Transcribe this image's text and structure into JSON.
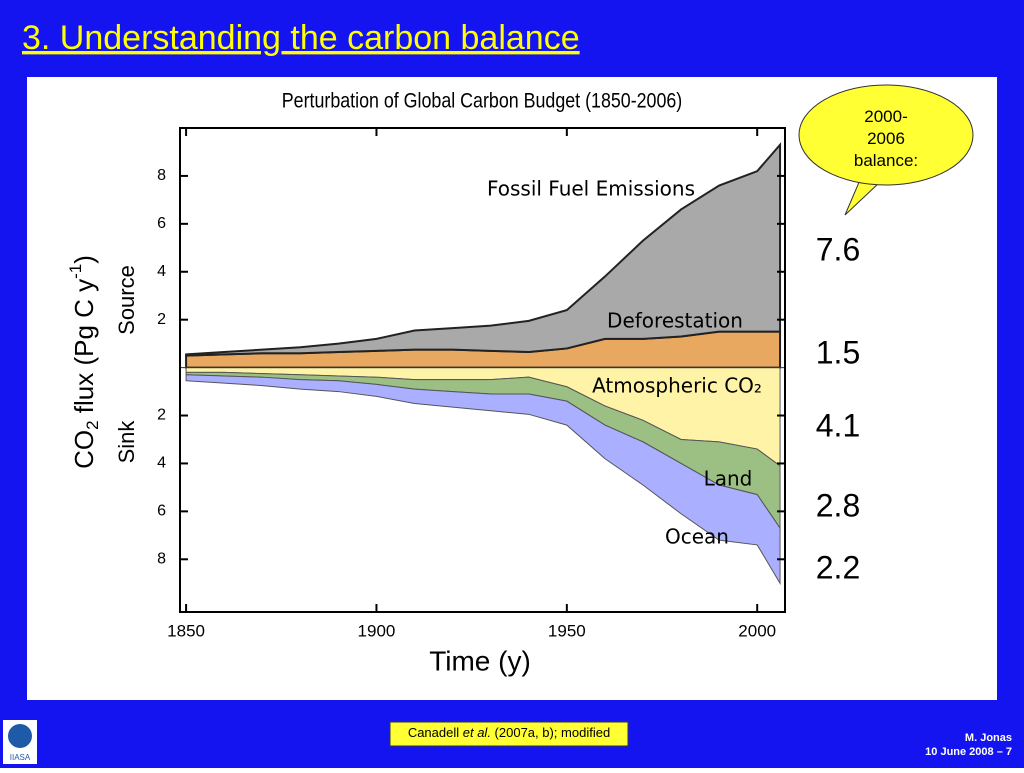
{
  "slide_title": "3. Understanding the carbon balance",
  "chart_data": {
    "type": "area",
    "title": "Perturbation of Global Carbon Budget (1850-2006)",
    "y_label": [
      "CO",
      "2",
      " flux (Pg C y",
      "-1",
      ")"
    ],
    "source_label": "Source",
    "sink_label": "Sink",
    "x_label": "Time (y)",
    "x": [
      1850,
      1860,
      1870,
      1880,
      1890,
      1900,
      1910,
      1920,
      1930,
      1940,
      1950,
      1960,
      1970,
      1980,
      1990,
      2000,
      2006
    ],
    "series": [
      {
        "name": "Deforestation",
        "color": "#e8a860",
        "values": [
          0.5,
          0.55,
          0.6,
          0.6,
          0.65,
          0.7,
          0.75,
          0.75,
          0.7,
          0.65,
          0.8,
          1.2,
          1.2,
          1.3,
          1.5,
          1.5,
          1.5
        ]
      },
      {
        "name": "Fossil Fuel Emissions",
        "color": "#a9a9a9",
        "values": [
          0.05,
          0.1,
          0.15,
          0.25,
          0.35,
          0.5,
          0.8,
          0.9,
          1.05,
          1.3,
          1.6,
          2.6,
          4.1,
          5.3,
          6.1,
          6.7,
          7.8
        ]
      },
      {
        "name": "Atmospheric CO₂",
        "color": "#fff3a8",
        "values": [
          -0.2,
          -0.2,
          -0.25,
          -0.3,
          -0.35,
          -0.4,
          -0.5,
          -0.5,
          -0.5,
          -0.4,
          -0.8,
          -1.6,
          -2.2,
          -3.0,
          -3.1,
          -3.4,
          -4.1
        ]
      },
      {
        "name": "Land",
        "color": "#9cbf84",
        "values": [
          -0.1,
          -0.15,
          -0.15,
          -0.2,
          -0.2,
          -0.3,
          -0.4,
          -0.5,
          -0.6,
          -0.7,
          -0.6,
          -0.8,
          -0.9,
          -1.0,
          -1.8,
          -1.9,
          -2.6
        ]
      },
      {
        "name": "Ocean",
        "color": "#aab0ff",
        "values": [
          -0.25,
          -0.3,
          -0.35,
          -0.4,
          -0.45,
          -0.5,
          -0.6,
          -0.65,
          -0.7,
          -0.85,
          -1.0,
          -1.4,
          -1.8,
          -2.1,
          -2.3,
          -2.1,
          -2.3
        ]
      }
    ],
    "xlim": [
      1848.4,
      2007.3
    ],
    "xticks": [
      1850,
      1900,
      1950,
      2000
    ],
    "ylim": [
      -10.2,
      10
    ],
    "yticks": [
      {
        "value": -8,
        "label": "8"
      },
      {
        "value": -6,
        "label": "6"
      },
      {
        "value": -4,
        "label": "4"
      },
      {
        "value": -2,
        "label": "2"
      },
      2,
      4,
      6,
      8
    ]
  },
  "balance": {
    "label": "2000-2006 balance:",
    "values": [
      7.6,
      1.5,
      4.1,
      2.8,
      2.2
    ]
  },
  "citation": [
    "Canadell ",
    "et al.",
    " (2007a, b); modified"
  ],
  "author": "M. Jonas",
  "date_page": "10 June 2008 – 7",
  "logo": "IIASA"
}
